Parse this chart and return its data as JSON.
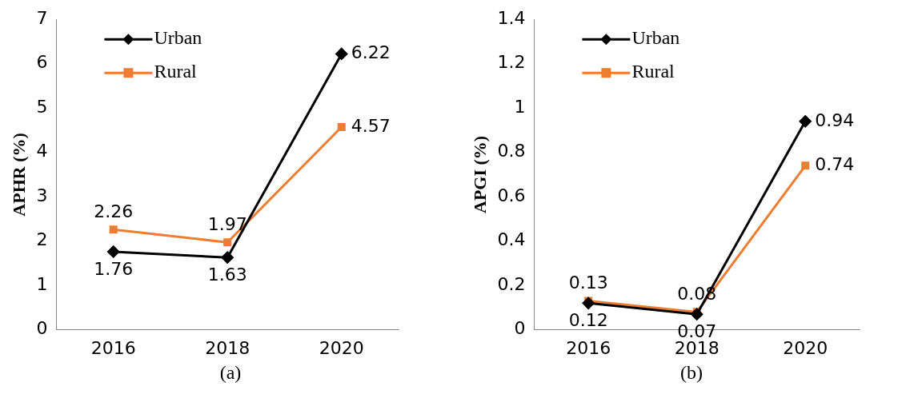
{
  "chart_data": [
    {
      "type": "line",
      "ylabel": "APHR (%)",
      "categories": [
        "2016",
        "2018",
        "2020"
      ],
      "series": [
        {
          "name": "Urban",
          "color": "#000000",
          "values": [
            1.76,
            1.63,
            6.22
          ],
          "marker": "diamond"
        },
        {
          "name": "Rural",
          "color": "#ed7d31",
          "values": [
            2.26,
            1.97,
            4.57
          ],
          "marker": "square"
        }
      ],
      "ylim": [
        0,
        7
      ],
      "yticks": [
        0,
        1,
        2,
        3,
        4,
        5,
        6,
        7
      ],
      "grid": false,
      "legend": "top left",
      "data_labels": true,
      "annotations": [
        "(a)"
      ]
    },
    {
      "type": "line",
      "ylabel": "APGI (%)",
      "categories": [
        "2016",
        "2018",
        "2020"
      ],
      "series": [
        {
          "name": "Urban",
          "color": "#000000",
          "values": [
            0.12,
            0.07,
            0.94
          ],
          "marker": "diamond"
        },
        {
          "name": "Rural",
          "color": "#ed7d31",
          "values": [
            0.13,
            0.08,
            0.74
          ],
          "marker": "square"
        }
      ],
      "ylim": [
        0,
        1.4
      ],
      "yticks": [
        0,
        0.2,
        0.4,
        0.6,
        0.8,
        1,
        1.2,
        1.4
      ],
      "grid": false,
      "legend": "top left",
      "data_labels": true,
      "annotations": [
        "(b)"
      ]
    }
  ]
}
